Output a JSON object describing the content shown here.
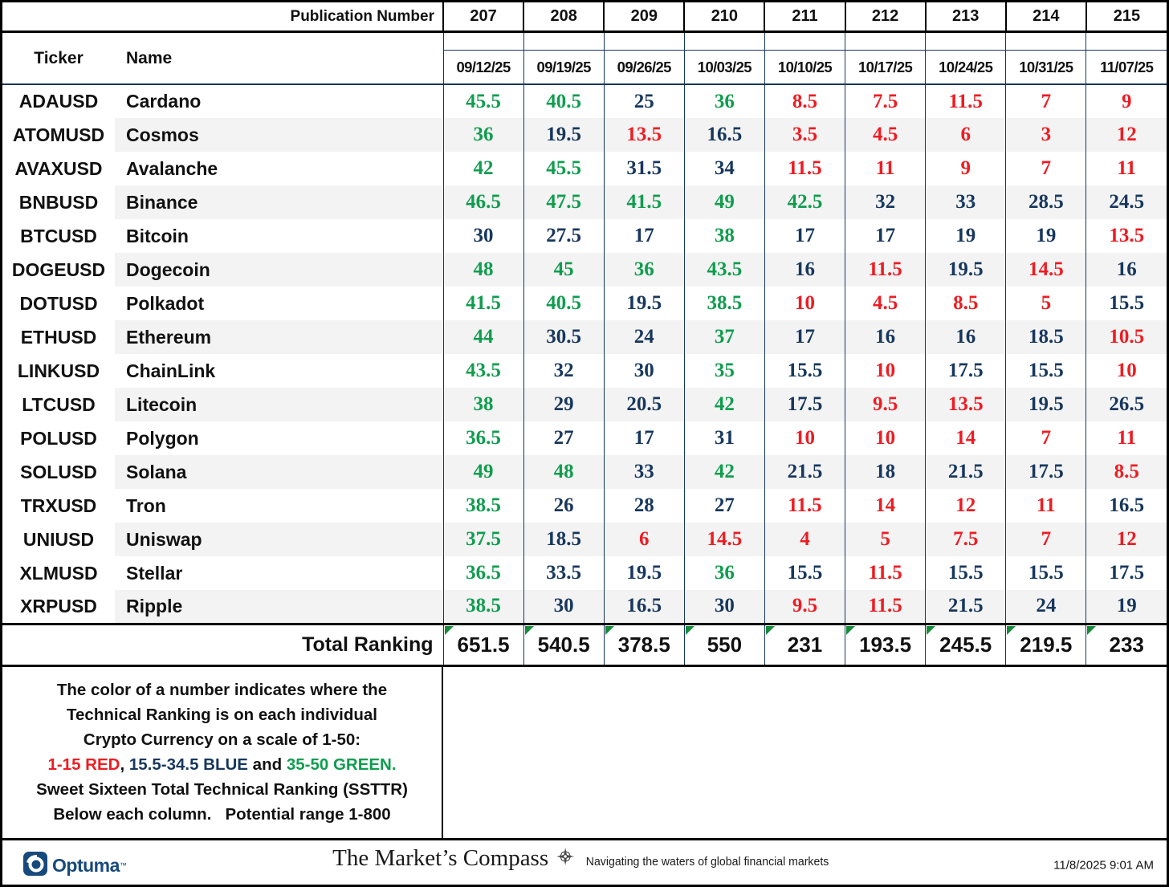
{
  "header": {
    "publication_label": "Publication Number",
    "publication_numbers": [
      "207",
      "208",
      "209",
      "210",
      "211",
      "212",
      "213",
      "214",
      "215"
    ],
    "ticker_label": "Ticker",
    "name_label": "Name",
    "dates": [
      "09/12/25",
      "09/19/25",
      "09/26/25",
      "10/03/25",
      "10/10/25",
      "10/17/25",
      "10/24/25",
      "10/31/25",
      "11/07/25"
    ]
  },
  "rows": [
    {
      "ticker": "ADAUSD",
      "name": "Cardano",
      "values": [
        45.5,
        40.5,
        25,
        36,
        8.5,
        7.5,
        11.5,
        7,
        9
      ]
    },
    {
      "ticker": "ATOMUSD",
      "name": "Cosmos",
      "values": [
        36,
        19.5,
        13.5,
        16.5,
        3.5,
        4.5,
        6,
        3,
        12
      ]
    },
    {
      "ticker": "AVAXUSD",
      "name": "Avalanche",
      "values": [
        42,
        45.5,
        31.5,
        34,
        11.5,
        11,
        9,
        7,
        11
      ]
    },
    {
      "ticker": "BNBUSD",
      "name": "Binance",
      "values": [
        46.5,
        47.5,
        41.5,
        49,
        42.5,
        32,
        33,
        28.5,
        24.5
      ]
    },
    {
      "ticker": "BTCUSD",
      "name": "Bitcoin",
      "values": [
        30,
        27.5,
        17,
        38,
        17,
        17,
        19,
        19,
        13.5
      ]
    },
    {
      "ticker": "DOGEUSD",
      "name": "Dogecoin",
      "values": [
        48,
        45,
        36,
        43.5,
        16,
        11.5,
        19.5,
        14.5,
        16
      ]
    },
    {
      "ticker": "DOTUSD",
      "name": "Polkadot",
      "values": [
        41.5,
        40.5,
        19.5,
        38.5,
        10,
        4.5,
        8.5,
        5,
        15.5
      ]
    },
    {
      "ticker": "ETHUSD",
      "name": "Ethereum",
      "values": [
        44,
        30.5,
        24,
        37,
        17,
        16,
        16,
        18.5,
        10.5
      ]
    },
    {
      "ticker": "LINKUSD",
      "name": "ChainLink",
      "values": [
        43.5,
        32,
        30,
        35,
        15.5,
        10,
        17.5,
        15.5,
        10
      ]
    },
    {
      "ticker": "LTCUSD",
      "name": "Litecoin",
      "values": [
        38,
        29,
        20.5,
        42,
        17.5,
        9.5,
        13.5,
        19.5,
        26.5
      ]
    },
    {
      "ticker": "POLUSD",
      "name": "Polygon",
      "values": [
        36.5,
        27,
        17,
        31,
        10,
        10,
        14,
        7,
        11
      ]
    },
    {
      "ticker": "SOLUSD",
      "name": "Solana",
      "values": [
        49,
        48,
        33,
        42,
        21.5,
        18,
        21.5,
        17.5,
        8.5
      ]
    },
    {
      "ticker": "TRXUSD",
      "name": "Tron",
      "values": [
        38.5,
        26,
        28,
        27,
        11.5,
        14,
        12,
        11,
        16.5
      ]
    },
    {
      "ticker": "UNIUSD",
      "name": "Uniswap",
      "values": [
        37.5,
        18.5,
        6,
        14.5,
        4,
        5,
        7.5,
        7,
        12
      ]
    },
    {
      "ticker": "XLMUSD",
      "name": "Stellar",
      "values": [
        36.5,
        33.5,
        19.5,
        36,
        15.5,
        11.5,
        15.5,
        15.5,
        17.5
      ]
    },
    {
      "ticker": "XRPUSD",
      "name": "Ripple",
      "values": [
        38.5,
        30,
        16.5,
        30,
        9.5,
        11.5,
        21.5,
        24,
        19
      ]
    }
  ],
  "totals": {
    "label": "Total Ranking",
    "values": [
      "651.5",
      "540.5",
      "378.5",
      "550",
      "231",
      "193.5",
      "245.5",
      "219.5",
      "233"
    ]
  },
  "legend": {
    "line1": "The color of a number indicates where the",
    "line2": "Technical Ranking is on each individual",
    "line3": "Crypto Currency on a scale of 1-50:",
    "range_red": "1-15 RED",
    "range_sep1": ", ",
    "range_blue": "15.5-34.5 BLUE",
    "range_and": " and ",
    "range_green": "35-50 GREEN.",
    "line5": "Sweet Sixteen Total Technical Ranking (SSTTR)",
    "line6": "Below each column.   Potential range 1-800"
  },
  "color_rule": {
    "red_max": 15,
    "blue_max": 34.5,
    "green_min": 35,
    "scale_min": 1,
    "scale_max": 50
  },
  "colors": {
    "red": "#ee1c22",
    "blue": "#17375d",
    "green": "#0f9d4e",
    "navy_line": "#17375d",
    "alt_row": "#f3f3f3",
    "triangle_green": "#168a38",
    "brand_blue": "#174a7c"
  },
  "footer": {
    "brand": "Optuma",
    "brand_mark": "™",
    "title": "The Market’s Compass",
    "subtitle": "Navigating the waters of global financial markets",
    "timestamp": "11/8/2025 9:01 AM"
  }
}
